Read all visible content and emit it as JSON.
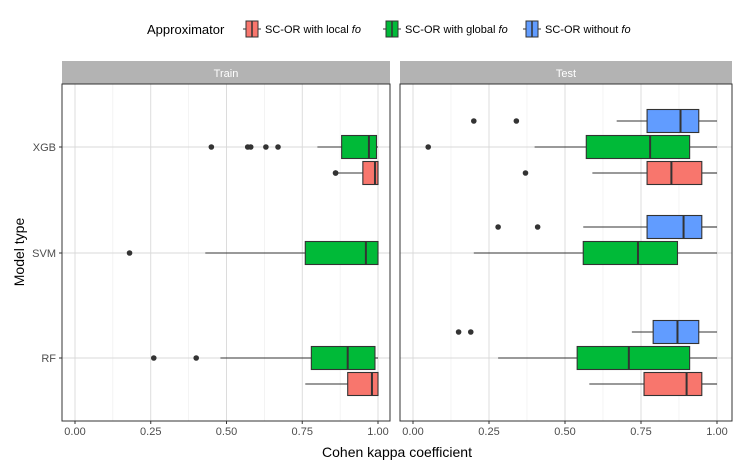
{
  "chart_data": {
    "type": "boxplot",
    "legend": {
      "title": "Approximator",
      "placement": "top",
      "entries": [
        {
          "prefix": "SC-OR with local ",
          "suffix": "fo",
          "color": "#F8766D"
        },
        {
          "prefix": "SC-OR with global ",
          "suffix": "fo",
          "color": "#00BA38"
        },
        {
          "prefix": "SC-OR without ",
          "suffix": "fo",
          "color": "#619CFF"
        }
      ]
    },
    "xlabel": "Cohen kappa coefficient",
    "ylabel": "Model type",
    "xlim": [
      0,
      1
    ],
    "xticks": [
      "0.00",
      "0.25",
      "0.50",
      "0.75",
      "1.00"
    ],
    "xtick_values": [
      0,
      0.25,
      0.5,
      0.75,
      1.0
    ],
    "categories": [
      "XGB",
      "SVM",
      "RF"
    ],
    "grid": true,
    "panels": [
      {
        "title": "Train",
        "groups": [
          {
            "category": "XGB",
            "series": [
              {
                "approximator": 1,
                "min": 0.8,
                "q1": 0.88,
                "median": 0.97,
                "q3": 0.995,
                "max": 1.0,
                "outliers": [
                  0.45,
                  0.57,
                  0.58,
                  0.63,
                  0.67
                ]
              },
              {
                "approximator": 0,
                "min": 0.86,
                "q1": 0.95,
                "median": 0.99,
                "q3": 1.0,
                "max": 1.0,
                "outliers": [
                  0.86,
                  0.86
                ]
              }
            ]
          },
          {
            "category": "SVM",
            "series": [
              {
                "approximator": 1,
                "min": 0.43,
                "q1": 0.76,
                "median": 0.96,
                "q3": 1.0,
                "max": 1.0,
                "outliers": [
                  0.18
                ]
              }
            ]
          },
          {
            "category": "RF",
            "series": [
              {
                "approximator": 1,
                "min": 0.48,
                "q1": 0.78,
                "median": 0.9,
                "q3": 0.99,
                "max": 1.0,
                "outliers": [
                  0.26,
                  0.4
                ]
              },
              {
                "approximator": 0,
                "min": 0.76,
                "q1": 0.9,
                "median": 0.98,
                "q3": 1.0,
                "max": 1.0,
                "outliers": []
              }
            ]
          }
        ]
      },
      {
        "title": "Test",
        "groups": [
          {
            "category": "XGB",
            "series": [
              {
                "approximator": 2,
                "min": 0.67,
                "q1": 0.77,
                "median": 0.88,
                "q3": 0.94,
                "max": 1.0,
                "outliers": [
                  0.2,
                  0.34
                ]
              },
              {
                "approximator": 1,
                "min": 0.4,
                "q1": 0.57,
                "median": 0.78,
                "q3": 0.91,
                "max": 1.0,
                "outliers": [
                  0.05
                ]
              },
              {
                "approximator": 0,
                "min": 0.59,
                "q1": 0.77,
                "median": 0.85,
                "q3": 0.95,
                "max": 1.0,
                "outliers": [
                  0.37
                ]
              }
            ]
          },
          {
            "category": "SVM",
            "series": [
              {
                "approximator": 2,
                "min": 0.56,
                "q1": 0.77,
                "median": 0.89,
                "q3": 0.95,
                "max": 1.0,
                "outliers": [
                  0.28,
                  0.41
                ]
              },
              {
                "approximator": 1,
                "min": 0.2,
                "q1": 0.56,
                "median": 0.74,
                "q3": 0.87,
                "max": 1.0,
                "outliers": []
              }
            ]
          },
          {
            "category": "RF",
            "series": [
              {
                "approximator": 2,
                "min": 0.72,
                "q1": 0.79,
                "median": 0.87,
                "q3": 0.94,
                "max": 1.0,
                "outliers": [
                  0.15,
                  0.19
                ]
              },
              {
                "approximator": 1,
                "min": 0.28,
                "q1": 0.54,
                "median": 0.71,
                "q3": 0.91,
                "max": 1.0,
                "outliers": []
              },
              {
                "approximator": 0,
                "min": 0.58,
                "q1": 0.76,
                "median": 0.9,
                "q3": 0.95,
                "max": 1.0,
                "outliers": []
              }
            ]
          }
        ]
      }
    ]
  }
}
